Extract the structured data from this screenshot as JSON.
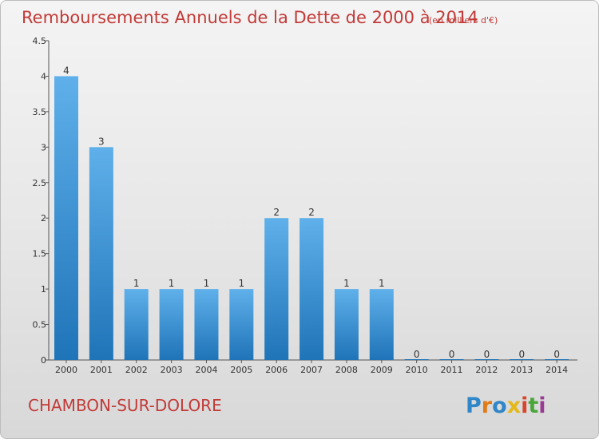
{
  "header": {
    "title": "Remboursements Annuels de la Dette de 2000 à 2014",
    "subtitle": "(en milliers d'€)"
  },
  "footer": {
    "town": "CHAMBON-SUR-DOLORE",
    "brand_letters": [
      {
        "ch": "P",
        "color": "#2f86c8"
      },
      {
        "ch": "r",
        "color": "#e07b18"
      },
      {
        "ch": "o",
        "color": "#2f86c8"
      },
      {
        "ch": "x",
        "color": "#e5b81a"
      },
      {
        "ch": "i",
        "color": "#d9452b"
      },
      {
        "ch": "t",
        "color": "#4aa63a"
      },
      {
        "ch": "i",
        "color": "#9b3c93"
      }
    ]
  },
  "colors": {
    "title": "#c23a37",
    "bar_light": "#5fb0ea",
    "bar_dark": "#1f74b8"
  },
  "chart_data": {
    "type": "bar",
    "categories": [
      "2000",
      "2001",
      "2002",
      "2003",
      "2004",
      "2005",
      "2006",
      "2007",
      "2008",
      "2009",
      "2010",
      "2011",
      "2012",
      "2013",
      "2014"
    ],
    "values": [
      4,
      3,
      1,
      1,
      1,
      1,
      2,
      2,
      1,
      1,
      0,
      0,
      0,
      0,
      0
    ],
    "labels": [
      "4",
      "3",
      "1",
      "1",
      "1",
      "1",
      "2",
      "2",
      "1",
      "1",
      "0",
      "0",
      "0",
      "0",
      "0"
    ],
    "yticks": [
      "0",
      "0.5",
      "1",
      "1.5",
      "2",
      "2.5",
      "3",
      "3.5",
      "4",
      "4.5"
    ],
    "ylim": [
      0,
      4.5
    ],
    "grid": false,
    "legend": "none"
  }
}
